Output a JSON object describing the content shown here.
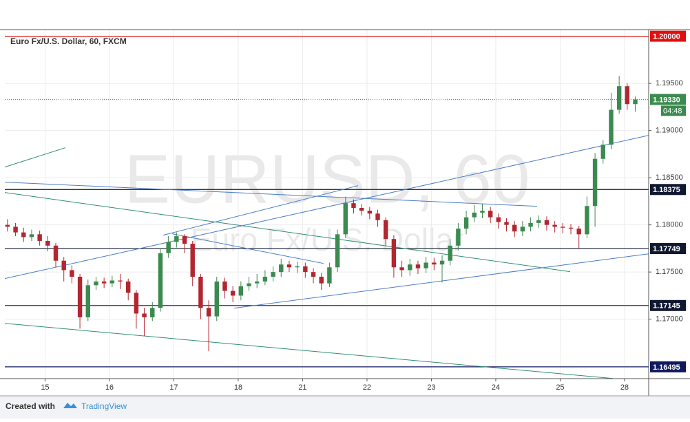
{
  "chart_data": {
    "type": "candlestick",
    "title": "Euro Fx/U.S. Dollar, 60, FXCM",
    "watermark": "EURUSD, 60",
    "watermark_subtitle": "Euro Fx/U.S. Dollar",
    "x": [
      0,
      3,
      6,
      9,
      12,
      15,
      18,
      21,
      24,
      27,
      30,
      33,
      36,
      39,
      42,
      45,
      48,
      51,
      54,
      57,
      60,
      63,
      66,
      69,
      72,
      75,
      78,
      81,
      84,
      87,
      90,
      93,
      96,
      99,
      102,
      105,
      108,
      111,
      114,
      117,
      120,
      123,
      126,
      129,
      132,
      135,
      138,
      141,
      144,
      147,
      150,
      153,
      156,
      159,
      162,
      165,
      168,
      171,
      174,
      177,
      180,
      183,
      186,
      189,
      192,
      195,
      198,
      201,
      204,
      207,
      210,
      213,
      216,
      219,
      222,
      225,
      228,
      231,
      234
    ],
    "open": [
      1.18,
      1.1798,
      1.1792,
      1.1787,
      1.179,
      1.1783,
      1.1778,
      1.1762,
      1.1752,
      1.1745,
      1.1702,
      1.1736,
      1.174,
      1.1738,
      1.1741,
      1.174,
      1.1728,
      1.1706,
      1.1702,
      1.1712,
      1.177,
      1.1782,
      1.1788,
      1.178,
      1.1745,
      1.1712,
      1.1703,
      1.174,
      1.173,
      1.1725,
      1.1735,
      1.1738,
      1.174,
      1.1745,
      1.175,
      1.1758,
      1.1755,
      1.1756,
      1.175,
      1.1745,
      1.1738,
      1.1755,
      1.179,
      1.1823,
      1.1818,
      1.1815,
      1.1812,
      1.1805,
      1.1785,
      1.1755,
      1.1752,
      1.1758,
      1.1754,
      1.176,
      1.1758,
      1.1762,
      1.1778,
      1.1796,
      1.1808,
      1.1813,
      1.1815,
      1.1808,
      1.1803,
      1.18,
      1.1793,
      1.1798,
      1.1802,
      1.1805,
      1.18,
      1.1798,
      1.1797,
      1.1796,
      1.179,
      1.182,
      1.187,
      1.1885,
      1.1922,
      1.1947,
      1.1928
    ],
    "high": [
      1.1806,
      1.1802,
      1.1797,
      1.1795,
      1.1794,
      1.1788,
      1.1781,
      1.1766,
      1.1757,
      1.1748,
      1.1742,
      1.1745,
      1.1744,
      1.1746,
      1.1748,
      1.1743,
      1.1731,
      1.1712,
      1.1718,
      1.1775,
      1.1788,
      1.1792,
      1.179,
      1.1783,
      1.1748,
      1.172,
      1.1745,
      1.1744,
      1.1735,
      1.174,
      1.1745,
      1.1748,
      1.1752,
      1.1756,
      1.1764,
      1.1762,
      1.1761,
      1.176,
      1.1754,
      1.1749,
      1.176,
      1.1795,
      1.183,
      1.1827,
      1.1822,
      1.1819,
      1.1816,
      1.1808,
      1.1789,
      1.1762,
      1.1764,
      1.1762,
      1.1766,
      1.1765,
      1.1768,
      1.1785,
      1.1802,
      1.1815,
      1.1821,
      1.1822,
      1.1819,
      1.1812,
      1.1807,
      1.1804,
      1.1804,
      1.1808,
      1.181,
      1.1809,
      1.1804,
      1.1802,
      1.1801,
      1.1799,
      1.183,
      1.1876,
      1.189,
      1.194,
      1.1958,
      1.195,
      1.1936
    ],
    "low": [
      1.1793,
      1.1788,
      1.1782,
      1.1783,
      1.1778,
      1.1772,
      1.1755,
      1.174,
      1.1738,
      1.169,
      1.1698,
      1.1731,
      1.1733,
      1.1734,
      1.1732,
      1.172,
      1.169,
      1.1682,
      1.1698,
      1.1708,
      1.1765,
      1.1776,
      1.177,
      1.1735,
      1.17,
      1.1666,
      1.1698,
      1.1722,
      1.1718,
      1.172,
      1.173,
      1.1733,
      1.1736,
      1.174,
      1.1745,
      1.175,
      1.1749,
      1.1744,
      1.1738,
      1.1731,
      1.1734,
      1.175,
      1.1786,
      1.1812,
      1.181,
      1.1806,
      1.1798,
      1.1778,
      1.1744,
      1.1745,
      1.1746,
      1.1748,
      1.1749,
      1.1752,
      1.1739,
      1.1757,
      1.1773,
      1.179,
      1.1803,
      1.1807,
      1.1802,
      1.1796,
      1.1793,
      1.1787,
      1.1788,
      1.1793,
      1.1797,
      1.1794,
      1.1792,
      1.1791,
      1.179,
      1.1775,
      1.1786,
      1.1798,
      1.1865,
      1.188,
      1.1918,
      1.1922,
      1.192
    ],
    "close": [
      1.1798,
      1.1792,
      1.1787,
      1.179,
      1.1783,
      1.1778,
      1.1762,
      1.1752,
      1.1745,
      1.1702,
      1.1736,
      1.174,
      1.1738,
      1.1741,
      1.174,
      1.1728,
      1.1706,
      1.1702,
      1.1712,
      1.177,
      1.1782,
      1.1788,
      1.178,
      1.1745,
      1.1712,
      1.1703,
      1.174,
      1.173,
      1.1725,
      1.1735,
      1.1738,
      1.174,
      1.1745,
      1.175,
      1.1758,
      1.1755,
      1.1756,
      1.175,
      1.1745,
      1.1738,
      1.1755,
      1.179,
      1.1823,
      1.1818,
      1.1815,
      1.1812,
      1.1805,
      1.1785,
      1.1755,
      1.1752,
      1.1758,
      1.1754,
      1.176,
      1.1758,
      1.1762,
      1.1778,
      1.1796,
      1.1808,
      1.1813,
      1.1815,
      1.1808,
      1.1803,
      1.18,
      1.1793,
      1.1798,
      1.1802,
      1.1805,
      1.18,
      1.1798,
      1.1797,
      1.1796,
      1.179,
      1.182,
      1.187,
      1.1885,
      1.1922,
      1.1947,
      1.1928,
      1.1933
    ],
    "up_color": "#3b8a4f",
    "down_color": "#b3262f",
    "xlim": [
      -1,
      239
    ],
    "ylim": [
      1.1637,
      1.2007
    ],
    "xticks": [
      {
        "value": 14,
        "label": "15"
      },
      {
        "value": 38,
        "label": "16"
      },
      {
        "value": 62,
        "label": "17"
      },
      {
        "value": 86,
        "label": "18"
      },
      {
        "value": 110,
        "label": "21"
      },
      {
        "value": 134,
        "label": "22"
      },
      {
        "value": 158,
        "label": "23"
      },
      {
        "value": 182,
        "label": "24"
      },
      {
        "value": 206,
        "label": "25"
      },
      {
        "value": 230,
        "label": "28"
      }
    ],
    "yticks": [
      {
        "value": 1.17,
        "label": "1.17000"
      },
      {
        "value": 1.175,
        "label": "1.17500"
      },
      {
        "value": 1.18,
        "label": "1.18000"
      },
      {
        "value": 1.185,
        "label": "1.18500"
      },
      {
        "value": 1.19,
        "label": "1.19000"
      },
      {
        "value": 1.195,
        "label": "1.19500"
      }
    ],
    "grid": true,
    "levels": [
      {
        "value": 1.2,
        "label": "1.20000",
        "color": "#e01010"
      },
      {
        "value": 1.18375,
        "label": "1.18375",
        "color": "#101830"
      },
      {
        "value": 1.17749,
        "label": "1.17749",
        "color": "#101830"
      },
      {
        "value": 1.17145,
        "label": "1.17145",
        "color": "#101830"
      },
      {
        "value": 1.16495,
        "label": "1.16495",
        "color": "#101860"
      }
    ],
    "last_price": {
      "value": 1.1933,
      "label": "1.19330",
      "color": "#3b8a4f"
    },
    "countdown": "04:48",
    "trendlines": [
      {
        "x": [
          -1,
          239
        ],
        "y": [
          1.17431,
          1.18949
        ],
        "color": "#4a7cc8"
      },
      {
        "x": [
          -1,
          197.4
        ],
        "y": [
          1.18453,
          1.18197
        ],
        "color": "#4a7cc8"
      },
      {
        "x": [
          -1,
          209.7
        ],
        "y": [
          1.18343,
          1.17504
        ],
        "color": "#2e8f6e"
      },
      {
        "x": [
          -1,
          21.6
        ],
        "y": [
          1.18613,
          1.18818
        ],
        "color": "#2e8f6e"
      },
      {
        "x": [
          58,
          130.7
        ],
        "y": [
          1.17891,
          1.18416
        ],
        "color": "#4a7cc8"
      },
      {
        "x": [
          61.4,
          117.8
        ],
        "y": [
          1.17905,
          1.17591
        ],
        "color": "#4a7cc8"
      },
      {
        "x": [
          84.5,
          239
        ],
        "y": [
          1.17117,
          1.17693
        ],
        "color": "#4a7cc8"
      },
      {
        "x": [
          -1,
          225.6
        ],
        "y": [
          1.16956,
          1.16372
        ],
        "color": "#2e8f6e"
      }
    ]
  },
  "footer": {
    "created_with": "Created with",
    "brand": "TradingView"
  }
}
